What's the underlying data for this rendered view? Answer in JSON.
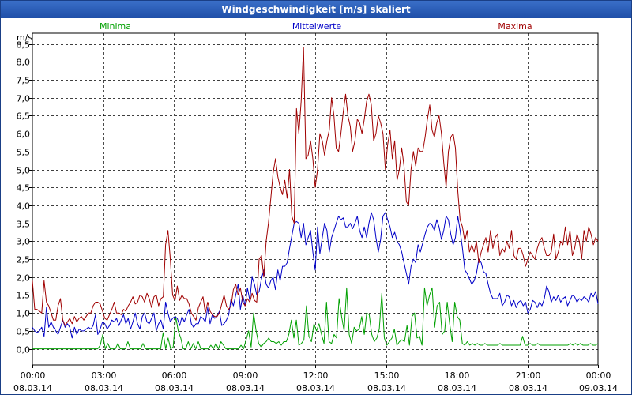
{
  "window": {
    "title": "Windgeschwindigkeit [m/s] skaliert"
  },
  "chart_data": {
    "type": "line",
    "title": "Windgeschwindigkeit [m/s] skaliert",
    "ylabel": "m/s",
    "ylim": [
      -0.45,
      8.8
    ],
    "yticks": [
      "0,0",
      "0,5",
      "1,0",
      "1,5",
      "2,0",
      "2,5",
      "3,0",
      "3,5",
      "4,0",
      "4,5",
      "5,0",
      "5,5",
      "6,0",
      "6,5",
      "7,0",
      "7,5",
      "8,0",
      "8,5"
    ],
    "xlim_hours": [
      0,
      24
    ],
    "xticks": [
      {
        "time": "00:00",
        "date": "08.03.14"
      },
      {
        "time": "03:00",
        "date": "08.03.14"
      },
      {
        "time": "06:00",
        "date": "08.03.14"
      },
      {
        "time": "09:00",
        "date": "08.03.14"
      },
      {
        "time": "12:00",
        "date": "08.03.14"
      },
      {
        "time": "15:00",
        "date": "08.03.14"
      },
      {
        "time": "18:00",
        "date": "08.03.14"
      },
      {
        "time": "21:00",
        "date": "08.03.14"
      },
      {
        "time": "00:00",
        "date": "09.03.14"
      }
    ],
    "grid": true,
    "series": [
      {
        "name": "Minima",
        "color": "#00a000",
        "values": [
          0.0,
          0.0,
          0.0,
          0.0,
          0.0,
          0.0,
          0.0,
          0.0,
          0.0,
          0.0,
          0.0,
          0.0,
          0.0,
          0.0,
          0.0,
          0.0,
          0.0,
          0.0,
          0.0,
          0.0,
          0.0,
          0.0,
          0.0,
          0.0,
          0.0,
          0.0,
          0.0,
          0.1,
          0.4,
          0.0,
          0.15,
          0.0,
          0.0,
          0.0,
          0.15,
          0.0,
          0.0,
          0.0,
          0.2,
          0.0,
          0.0,
          0.0,
          0.0,
          0.0,
          0.15,
          0.0,
          0.0,
          0.0,
          0.0,
          0.0,
          0.0,
          0.0,
          0.45,
          0.0,
          0.3,
          0.0,
          0.05,
          0.9,
          0.5,
          0.3,
          0.0,
          0.0,
          0.2,
          0.0,
          0.15,
          0.0,
          0.2,
          0.0,
          0.0,
          0.0,
          0.0,
          0.1,
          0.0,
          0.15,
          0.0,
          0.2,
          0.1,
          0.0,
          0.0,
          0.0,
          0.0,
          0.0,
          0.0,
          0.1,
          0.0,
          0.25,
          0.5,
          0.05,
          1.0,
          0.5,
          0.15,
          0.05,
          0.15,
          0.2,
          0.3,
          0.2,
          0.2,
          0.15,
          0.2,
          0.1,
          0.2,
          0.2,
          0.4,
          0.8,
          0.3,
          0.8,
          0.1,
          0.15,
          0.25,
          1.2,
          0.35,
          0.2,
          0.7,
          0.5,
          0.7,
          0.4,
          0.15,
          1.3,
          0.2,
          0.15,
          0.4,
          0.3,
          1.4,
          0.9,
          0.5,
          1.7,
          0.4,
          0.15,
          0.6,
          0.5,
          0.55,
          0.9,
          0.4,
          1.0,
          0.95,
          0.4,
          0.2,
          0.3,
          0.55,
          1.55,
          0.3,
          0.1,
          0.2,
          0.3,
          0.55,
          0.1,
          0.2,
          0.25,
          0.2,
          0.65,
          0.1,
          0.9,
          1.0,
          0.3,
          0.35,
          0.1,
          1.7,
          1.2,
          1.5,
          1.7,
          0.6,
          1.2,
          1.3,
          0.4,
          0.5,
          1.3,
          0.7,
          0.2,
          1.3,
          0.9,
          0.8,
          0.15,
          0.1,
          0.2,
          0.1,
          0.15,
          0.1,
          0.15,
          0.1,
          0.1,
          0.15,
          0.1,
          0.1,
          0.1,
          0.1,
          0.1,
          0.15,
          0.1,
          0.1,
          0.1,
          0.1,
          0.1,
          0.1,
          0.1,
          0.1,
          0.35,
          0.1,
          0.1,
          0.15,
          0.1,
          0.1,
          0.15,
          0.1,
          0.1,
          0.1,
          0.1,
          0.1,
          0.1,
          0.1,
          0.1,
          0.1,
          0.1,
          0.1,
          0.1,
          0.15,
          0.1,
          0.15,
          0.1,
          0.15,
          0.1,
          0.1,
          0.1,
          0.15,
          0.1,
          0.1,
          0.15
        ]
      },
      {
        "name": "Mittelwerte",
        "color": "#0000c8",
        "values": [
          0.6,
          0.5,
          0.45,
          0.5,
          0.6,
          0.35,
          1.15,
          0.6,
          0.75,
          0.6,
          0.5,
          0.4,
          0.6,
          0.8,
          0.6,
          0.7,
          0.6,
          0.3,
          0.6,
          0.4,
          0.55,
          0.5,
          0.5,
          0.55,
          0.6,
          0.55,
          0.65,
          0.95,
          0.4,
          0.55,
          0.75,
          0.7,
          0.55,
          0.65,
          0.8,
          0.75,
          0.85,
          0.65,
          0.8,
          0.95,
          0.7,
          0.85,
          0.55,
          0.75,
          1.0,
          0.7,
          0.55,
          0.9,
          1.0,
          0.75,
          0.7,
          0.85,
          1.0,
          0.5,
          0.7,
          0.8,
          0.55,
          1.3,
          1.0,
          0.75,
          0.85,
          0.9,
          0.85,
          0.65,
          0.9,
          0.75,
          0.95,
          1.1,
          0.7,
          0.6,
          0.7,
          0.7,
          0.9,
          0.85,
          0.75,
          1.15,
          0.7,
          0.95,
          0.85,
          0.9,
          1.05,
          0.65,
          0.7,
          0.8,
          0.95,
          1.4,
          1.2,
          1.5,
          1.8,
          1.1,
          1.5,
          1.2,
          1.7,
          1.35,
          2.0,
          1.8,
          1.5,
          1.6,
          1.95,
          2.2,
          1.8,
          1.7,
          1.9,
          2.0,
          1.65,
          2.2,
          1.9,
          2.3,
          2.3,
          2.4,
          2.8,
          3.15,
          3.5,
          3.55,
          3.5,
          3.1,
          3.5,
          2.9,
          3.1,
          3.3,
          2.7,
          2.2,
          3.4,
          2.65,
          3.1,
          3.5,
          3.3,
          2.7,
          3.1,
          3.3,
          3.5,
          3.7,
          3.6,
          3.65,
          3.4,
          3.4,
          3.5,
          3.35,
          3.5,
          3.7,
          3.3,
          3.1,
          3.4,
          3.1,
          3.5,
          3.8,
          3.6,
          3.1,
          2.7,
          3.05,
          3.7,
          3.8,
          3.6,
          3.4,
          3.1,
          3.25,
          3.0,
          2.9,
          2.7,
          2.4,
          2.1,
          1.8,
          2.3,
          2.5,
          2.4,
          2.9,
          2.7,
          2.95,
          3.2,
          3.4,
          3.5,
          3.45,
          3.3,
          3.6,
          3.4,
          3.05,
          3.3,
          3.7,
          3.6,
          3.2,
          2.9,
          3.1,
          3.7,
          3.3,
          2.8,
          2.2,
          2.1,
          1.95,
          1.8,
          1.9,
          2.1,
          2.5,
          2.4,
          2.15,
          2.1,
          1.8,
          1.55,
          1.4,
          1.4,
          1.4,
          1.55,
          1.2,
          1.3,
          1.5,
          1.45,
          1.2,
          1.35,
          1.15,
          1.3,
          1.35,
          1.2,
          1.3,
          1.0,
          1.1,
          1.35,
          1.3,
          1.15,
          1.3,
          1.2,
          1.4,
          1.75,
          1.6,
          1.3,
          1.45,
          1.35,
          1.5,
          1.3,
          1.4,
          1.45,
          1.2,
          1.35,
          1.5,
          1.45,
          1.3,
          1.4,
          1.35,
          1.45,
          1.4,
          1.3,
          1.55,
          1.45,
          1.6,
          1.25
        ]
      },
      {
        "name": "Maxima",
        "color": "#a00000",
        "values": [
          1.9,
          1.1,
          1.1,
          1.05,
          1.0,
          1.9,
          1.3,
          1.2,
          1.0,
          0.8,
          0.8,
          1.2,
          1.4,
          0.8,
          0.65,
          0.75,
          0.85,
          0.7,
          0.9,
          0.75,
          0.85,
          0.9,
          0.8,
          0.9,
          1.0,
          1.0,
          1.2,
          1.3,
          1.3,
          1.25,
          1.05,
          0.85,
          0.8,
          0.95,
          1.1,
          1.3,
          1.0,
          1.0,
          0.95,
          1.1,
          1.05,
          1.2,
          1.3,
          1.45,
          1.25,
          1.3,
          1.5,
          1.45,
          1.3,
          1.55,
          1.4,
          1.15,
          1.45,
          1.5,
          1.2,
          1.4,
          1.45,
          2.9,
          3.3,
          2.5,
          1.5,
          1.35,
          1.75,
          1.35,
          1.5,
          1.4,
          1.4,
          1.25,
          1.0,
          0.9,
          0.8,
          1.15,
          1.3,
          1.45,
          1.0,
          1.3,
          1.05,
          0.95,
          0.9,
          0.9,
          1.0,
          1.25,
          1.5,
          1.2,
          1.1,
          1.2,
          1.65,
          1.8,
          1.5,
          1.7,
          1.3,
          1.2,
          1.4,
          1.3,
          1.55,
          1.35,
          1.3,
          2.5,
          2.6,
          2.0,
          3.0,
          3.5,
          4.2,
          4.9,
          5.3,
          4.8,
          4.5,
          4.3,
          4.7,
          4.2,
          5.0,
          3.7,
          3.5,
          6.7,
          6.0,
          6.9,
          8.4,
          5.3,
          5.4,
          5.8,
          5.3,
          4.5,
          5.0,
          6.0,
          5.8,
          5.4,
          5.8,
          6.1,
          7.0,
          6.5,
          5.6,
          5.5,
          6.0,
          6.6,
          7.1,
          6.5,
          6.2,
          5.5,
          5.8,
          6.4,
          6.3,
          6.0,
          6.4,
          6.9,
          7.1,
          6.8,
          5.8,
          6.0,
          6.5,
          6.3,
          6.0,
          5.0,
          5.7,
          6.1,
          5.3,
          5.8,
          4.7,
          5.0,
          5.6,
          5.1,
          4.1,
          4.0,
          5.0,
          5.5,
          5.1,
          5.6,
          5.5,
          5.5,
          5.9,
          6.4,
          6.8,
          6.1,
          5.9,
          6.3,
          6.5,
          6.0,
          5.2,
          4.5,
          5.5,
          5.9,
          6.0,
          5.6,
          4.4,
          3.6,
          3.4,
          3.0,
          3.3,
          2.7,
          2.9,
          2.7,
          3.0,
          2.4,
          2.7,
          2.9,
          3.1,
          2.7,
          3.3,
          2.8,
          3.1,
          3.2,
          2.6,
          2.8,
          2.7,
          3.0,
          2.8,
          3.3,
          2.6,
          2.5,
          2.8,
          2.8,
          2.6,
          2.3,
          2.5,
          2.7,
          2.6,
          2.5,
          2.8,
          3.0,
          3.1,
          2.8,
          2.6,
          2.6,
          2.7,
          3.2,
          2.5,
          2.7,
          3.0,
          2.9,
          3.4,
          2.9,
          3.3,
          2.6,
          2.8,
          3.2,
          3.0,
          2.5,
          3.3,
          3.0,
          3.4,
          3.2,
          2.9,
          3.1,
          3.0
        ]
      }
    ]
  }
}
